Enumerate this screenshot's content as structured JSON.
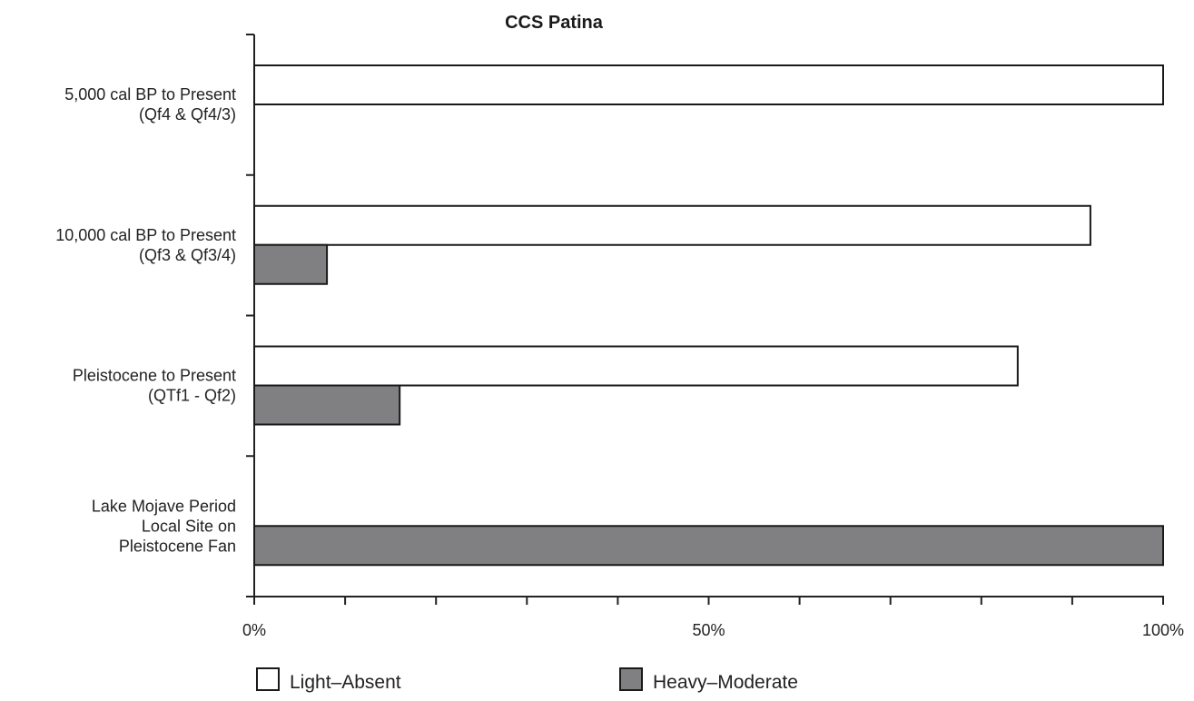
{
  "chart_data": {
    "type": "bar",
    "orientation": "horizontal",
    "title": "CCS Patina",
    "xlabel": "",
    "ylabel": "",
    "categories": [
      [
        "5,000 cal BP to Present",
        "(Qf4 & Qf4/3)"
      ],
      [
        "10,000 cal BP to Present",
        "(Qf3 & Qf3/4)"
      ],
      [
        "Pleistocene to Present",
        "(QTf1 - Qf2)"
      ],
      [
        "Lake Mojave Period",
        "Local Site on",
        "Pleistocene Fan"
      ]
    ],
    "series": [
      {
        "name": "Light–Absent",
        "color": "#ffffff",
        "values": [
          100,
          92,
          84,
          0
        ]
      },
      {
        "name": "Heavy–Moderate",
        "color": "#808083",
        "values": [
          0,
          8,
          16,
          100
        ]
      }
    ],
    "xlim": [
      0,
      100
    ],
    "x_tick_labels": {
      "0": "0%",
      "50": "50%",
      "100": "100%"
    },
    "x_minor_tick_step": 10,
    "grid": false,
    "legend_position": "bottom"
  }
}
